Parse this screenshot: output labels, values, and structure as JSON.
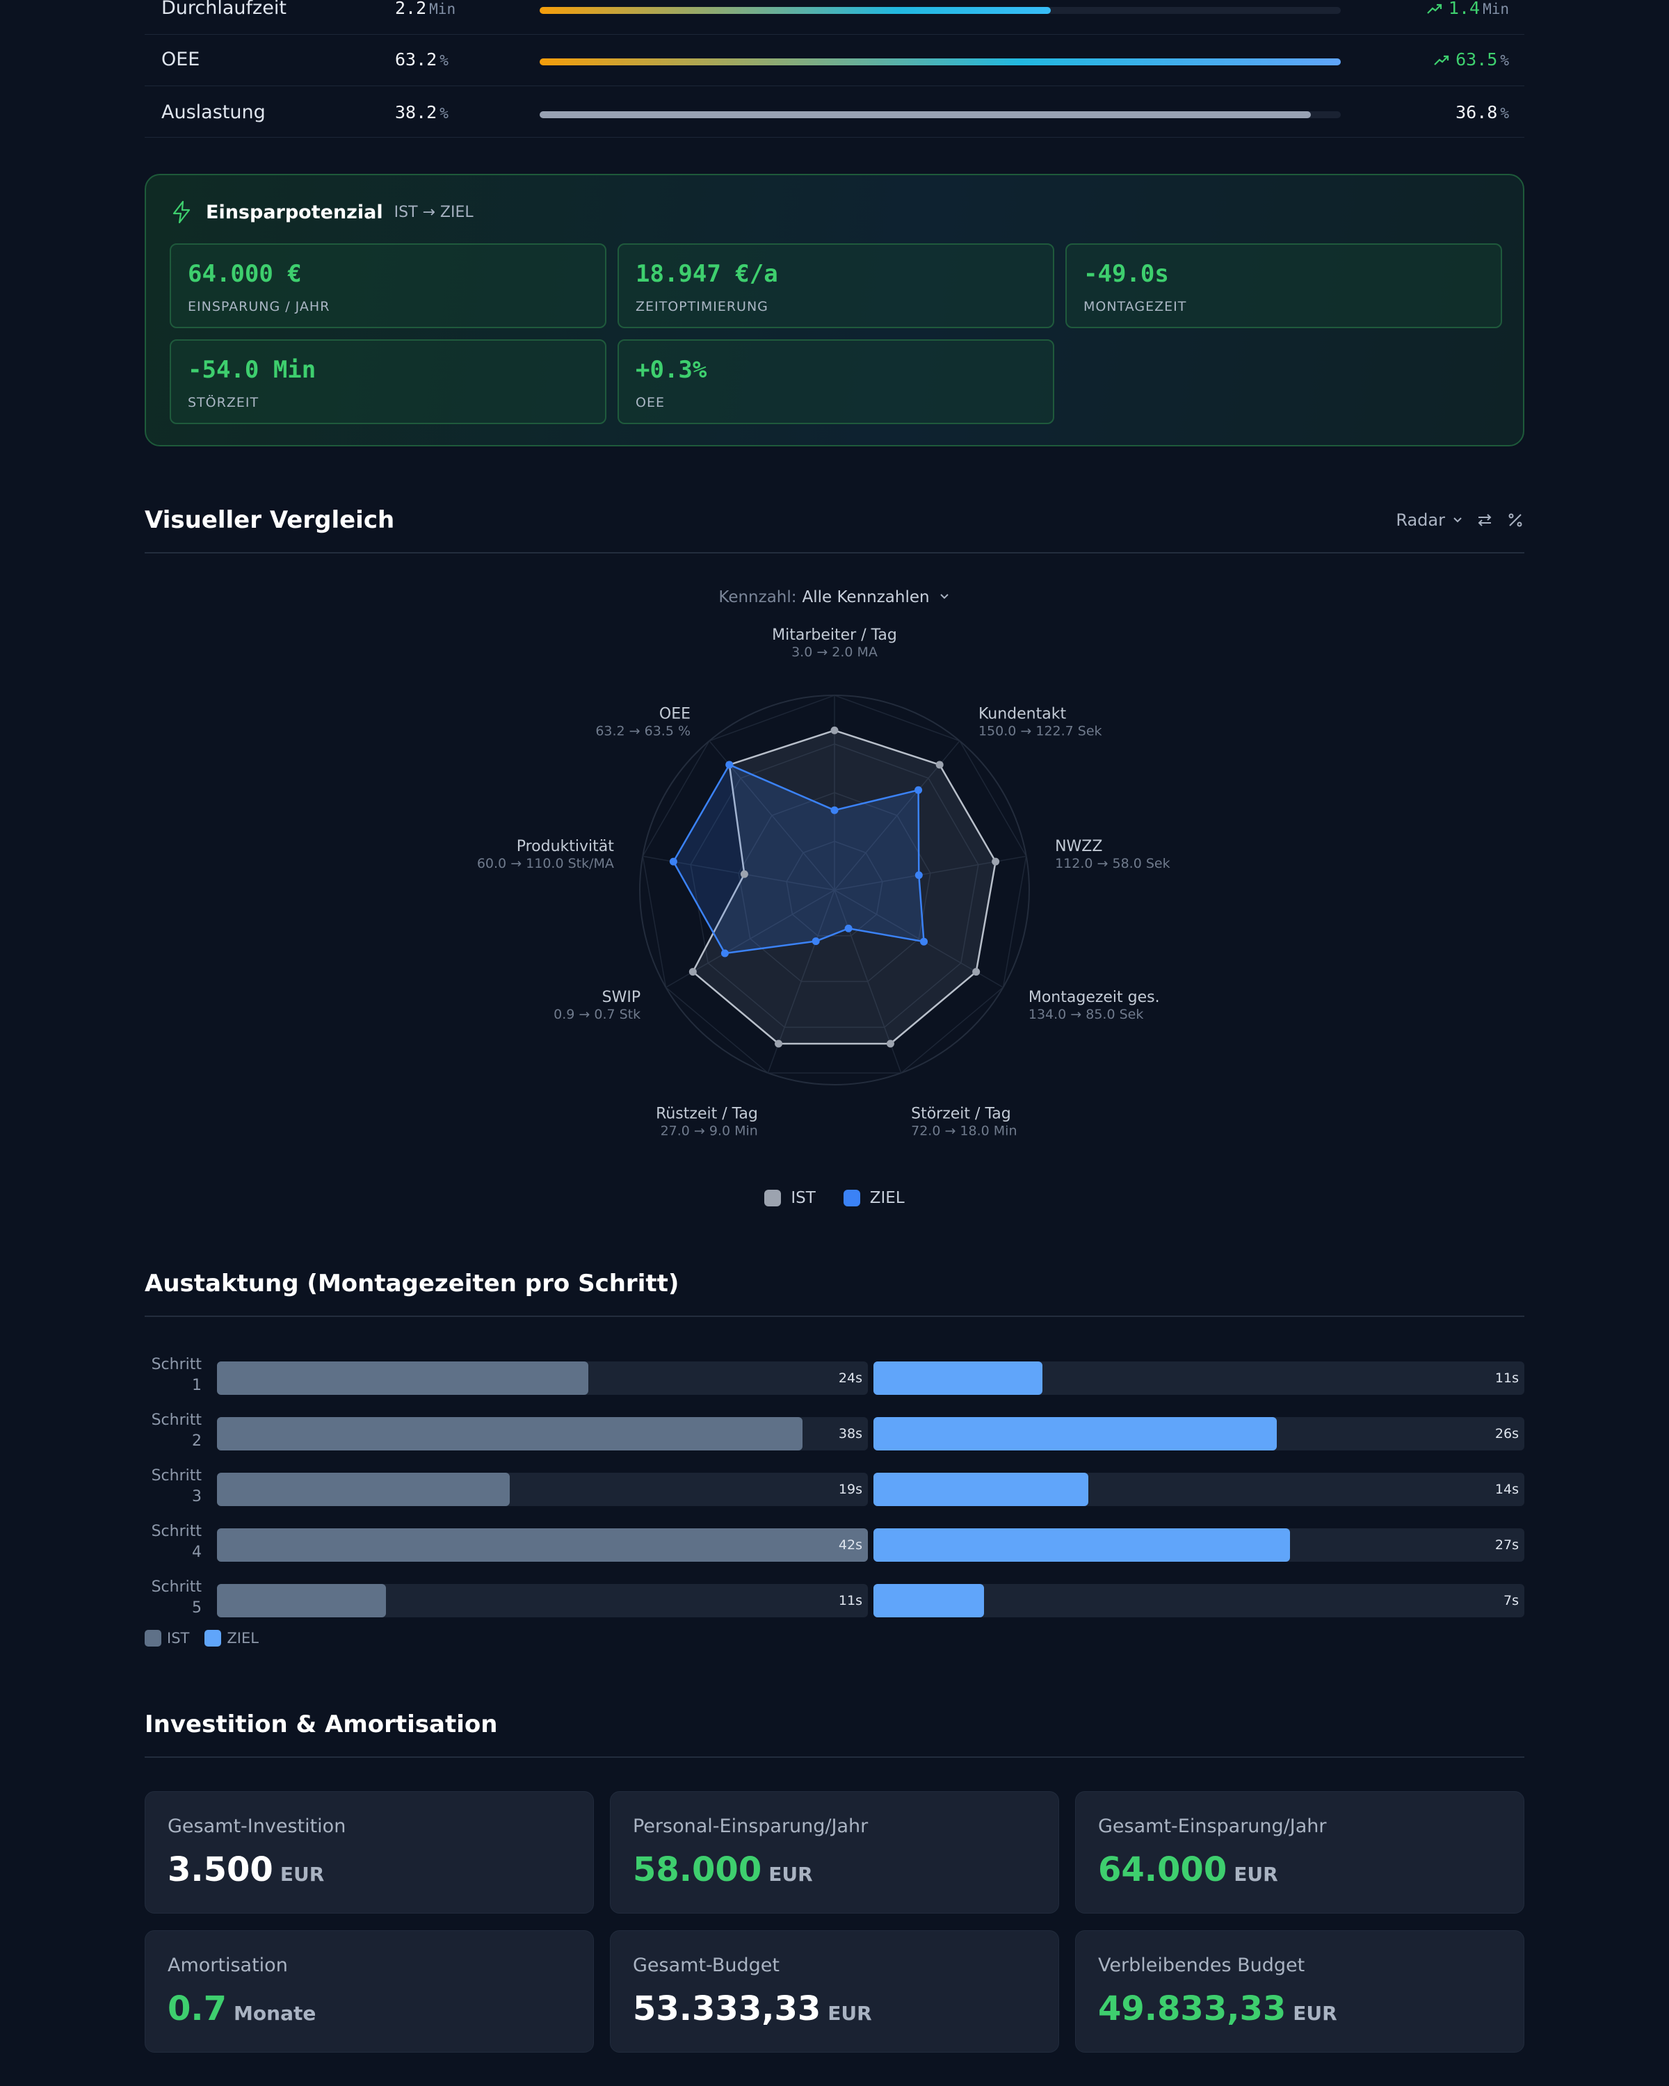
{
  "kpi_rows": [
    {
      "label": "Durchlaufzeit",
      "ist_value": "2.2",
      "ist_unit": "Min",
      "progress_percent": 63.8,
      "bar_style": "gradient",
      "ziel_value": "1.4",
      "ziel_unit": "Min",
      "ziel_trend": "improved"
    },
    {
      "label": "OEE",
      "ist_value": "63.2",
      "ist_unit": "%",
      "progress_percent": 100,
      "bar_style": "gradient",
      "ziel_value": "63.5",
      "ziel_unit": "%",
      "ziel_trend": "improved"
    },
    {
      "label": "Auslastung",
      "ist_value": "38.2",
      "ist_unit": "%",
      "progress_percent": 96.3,
      "bar_style": "neutral",
      "ziel_value": "36.8",
      "ziel_unit": "%",
      "ziel_trend": "none"
    }
  ],
  "savings": {
    "title": "Einsparpotenzial",
    "subtitle": "IST → ZIEL",
    "icon": "lightning-icon",
    "cards": [
      {
        "value": "64.000 €",
        "label": "EINSPARUNG / JAHR"
      },
      {
        "value": "18.947 €/a",
        "label": "ZEITOPTIMIERUNG"
      },
      {
        "value": "-49.0s",
        "label": "MONTAGEZEIT"
      },
      {
        "value": "-54.0 Min",
        "label": "STÖRZEIT"
      },
      {
        "value": "+0.3%",
        "label": "OEE"
      }
    ]
  },
  "visual": {
    "title": "Visueller Vergleich",
    "chart_type_select": "Radar",
    "icons": [
      "chevron-down-icon",
      "swap-icon",
      "percent-icon"
    ],
    "kennzahl_label": "Kennzahl:",
    "kennzahl_value": "Alle Kennzahlen"
  },
  "chart_data": [
    {
      "type": "radar",
      "axes": [
        {
          "name": "Mitarbeiter / Tag",
          "range_label": "3.0 → 2.0 MA",
          "ist": 3.0,
          "ziel": 2.0,
          "ist_norm": 0.82,
          "ziel_norm": 0.41
        },
        {
          "name": "Kundentakt",
          "range_label": "150.0 → 122.7 Sek",
          "ist": 150.0,
          "ziel": 122.7,
          "ist_norm": 0.84,
          "ziel_norm": 0.67
        },
        {
          "name": "NWZZ",
          "range_label": "112.0 → 58.0 Sek",
          "ist": 112.0,
          "ziel": 58.0,
          "ist_norm": 0.84,
          "ziel_norm": 0.44
        },
        {
          "name": "Montagezeit ges.",
          "range_label": "134.0 → 85.0 Sek",
          "ist": 134.0,
          "ziel": 85.0,
          "ist_norm": 0.84,
          "ziel_norm": 0.53
        },
        {
          "name": "Störzeit / Tag",
          "range_label": "72.0 → 18.0 Min",
          "ist": 72.0,
          "ziel": 18.0,
          "ist_norm": 0.84,
          "ziel_norm": 0.21
        },
        {
          "name": "Rüstzeit / Tag",
          "range_label": "27.0 → 9.0 Min",
          "ist": 27.0,
          "ziel": 9.0,
          "ist_norm": 0.84,
          "ziel_norm": 0.28
        },
        {
          "name": "SWIP",
          "range_label": "0.9 → 0.7 Stk",
          "ist": 0.9,
          "ziel": 0.7,
          "ist_norm": 0.84,
          "ziel_norm": 0.65
        },
        {
          "name": "Produktivität",
          "range_label": "60.0 → 110.0 Stk/MA",
          "ist": 60.0,
          "ziel": 110.0,
          "ist_norm": 0.47,
          "ziel_norm": 0.84
        },
        {
          "name": "OEE",
          "range_label": "63.2 → 63.5 %",
          "ist": 63.2,
          "ziel": 63.5,
          "ist_norm": 0.84,
          "ziel_norm": 0.84
        }
      ],
      "series": [
        {
          "name": "IST",
          "color": "#9ca3af"
        },
        {
          "name": "ZIEL",
          "color": "#3b82f6"
        }
      ]
    },
    {
      "type": "bar",
      "title": "Austaktung (Montagezeiten pro Schritt)",
      "categories": [
        "Schritt 1",
        "Schritt 2",
        "Schritt 3",
        "Schritt 4",
        "Schritt 5"
      ],
      "series": [
        {
          "name": "IST",
          "color": "#5f7188",
          "values": [
            24,
            38,
            19,
            42,
            11
          ],
          "value_labels": [
            "24s",
            "38s",
            "19s",
            "42s",
            "11s"
          ]
        },
        {
          "name": "ZIEL",
          "color": "#60a5fa",
          "values": [
            11,
            26,
            14,
            27,
            7
          ],
          "value_labels": [
            "11s",
            "26s",
            "14s",
            "27s",
            "7s"
          ]
        }
      ]
    }
  ],
  "radar_legend": [
    "IST",
    "ZIEL"
  ],
  "austaktung": {
    "title": "Austaktung (Montagezeiten pro Schritt)",
    "steps": [
      {
        "label": "Schritt 1",
        "ist": "24s",
        "ziel": "11s",
        "ist_frac": 0.57,
        "ziel_frac": 0.26
      },
      {
        "label": "Schritt 2",
        "ist": "38s",
        "ziel": "26s",
        "ist_frac": 0.9,
        "ziel_frac": 0.62
      },
      {
        "label": "Schritt 3",
        "ist": "19s",
        "ziel": "14s",
        "ist_frac": 0.45,
        "ziel_frac": 0.33
      },
      {
        "label": "Schritt 4",
        "ist": "42s",
        "ziel": "27s",
        "ist_frac": 1.0,
        "ziel_frac": 0.64
      },
      {
        "label": "Schritt 5",
        "ist": "11s",
        "ziel": "7s",
        "ist_frac": 0.26,
        "ziel_frac": 0.17
      }
    ],
    "legend": [
      "IST",
      "ZIEL"
    ]
  },
  "investition": {
    "title": "Investition & Amortisation",
    "cards": [
      {
        "label": "Gesamt-Investition",
        "value": "3.500",
        "unit": "EUR",
        "color": "white"
      },
      {
        "label": "Personal-Einsparung/Jahr",
        "value": "58.000",
        "unit": "EUR",
        "color": "green"
      },
      {
        "label": "Gesamt-Einsparung/Jahr",
        "value": "64.000",
        "unit": "EUR",
        "color": "green"
      },
      {
        "label": "Amortisation",
        "value": "0.7",
        "unit": "Monate",
        "color": "green"
      },
      {
        "label": "Gesamt-Budget",
        "value": "53.333,33",
        "unit": "EUR",
        "color": "white"
      },
      {
        "label": "Verbleibendes Budget",
        "value": "49.833,33",
        "unit": "EUR",
        "color": "green"
      }
    ]
  },
  "colors": {
    "background": "#0b1220",
    "accent_green": "#3ecf6e",
    "ist_gray": "#9ca3af",
    "ziel_blue": "#3b82f6",
    "bar_ist": "#5f7188",
    "bar_ziel": "#60a5fa"
  }
}
